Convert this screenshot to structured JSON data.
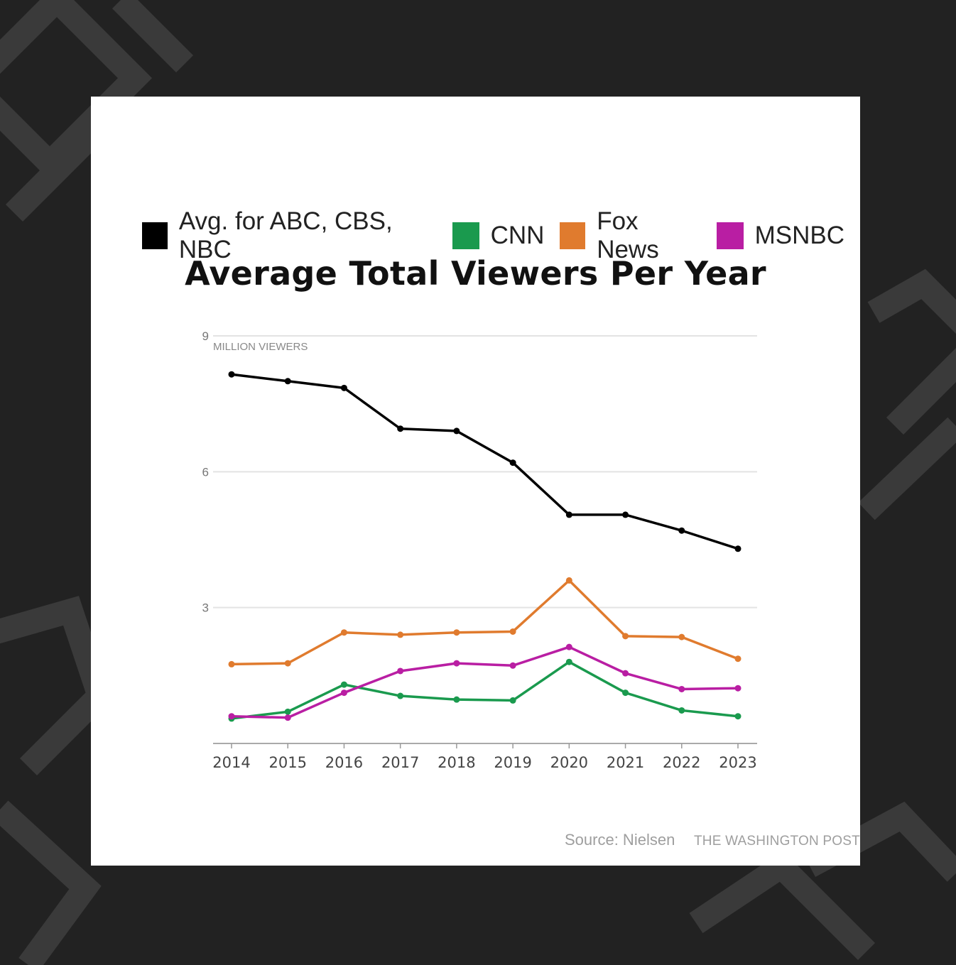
{
  "icons": {
    "background": "geometric-pattern"
  },
  "chart_data": {
    "type": "line",
    "title": "Average Total Viewers Per Year",
    "ylabel": "MILLION VIEWERS",
    "xlabel": "",
    "x": [
      "2014",
      "2015",
      "2016",
      "2017",
      "2018",
      "2019",
      "2020",
      "2021",
      "2022",
      "2023"
    ],
    "ylim": [
      0,
      9
    ],
    "yticks": [
      "3",
      "6",
      "9"
    ],
    "grid": true,
    "legend_position": "top",
    "series": [
      {
        "name": "Avg. for ABC, CBS, NBC",
        "color": "#000000",
        "values": [
          8.15,
          8.0,
          7.85,
          6.95,
          6.9,
          6.2,
          5.05,
          5.05,
          4.7,
          4.3
        ]
      },
      {
        "name": "CNN",
        "color": "#1a9a4e",
        "values": [
          0.55,
          0.7,
          1.3,
          1.05,
          0.97,
          0.95,
          1.8,
          1.12,
          0.73,
          0.6
        ]
      },
      {
        "name": "Fox News",
        "color": "#e07b2e",
        "values": [
          1.75,
          1.77,
          2.45,
          2.4,
          2.45,
          2.47,
          3.6,
          2.37,
          2.35,
          1.87
        ]
      },
      {
        "name": "MSNBC",
        "color": "#b91ea3",
        "values": [
          0.6,
          0.57,
          1.12,
          1.6,
          1.77,
          1.72,
          2.13,
          1.55,
          1.2,
          1.22
        ]
      }
    ],
    "source": "Source: Nielsen",
    "publisher": "THE WASHINGTON POST"
  }
}
